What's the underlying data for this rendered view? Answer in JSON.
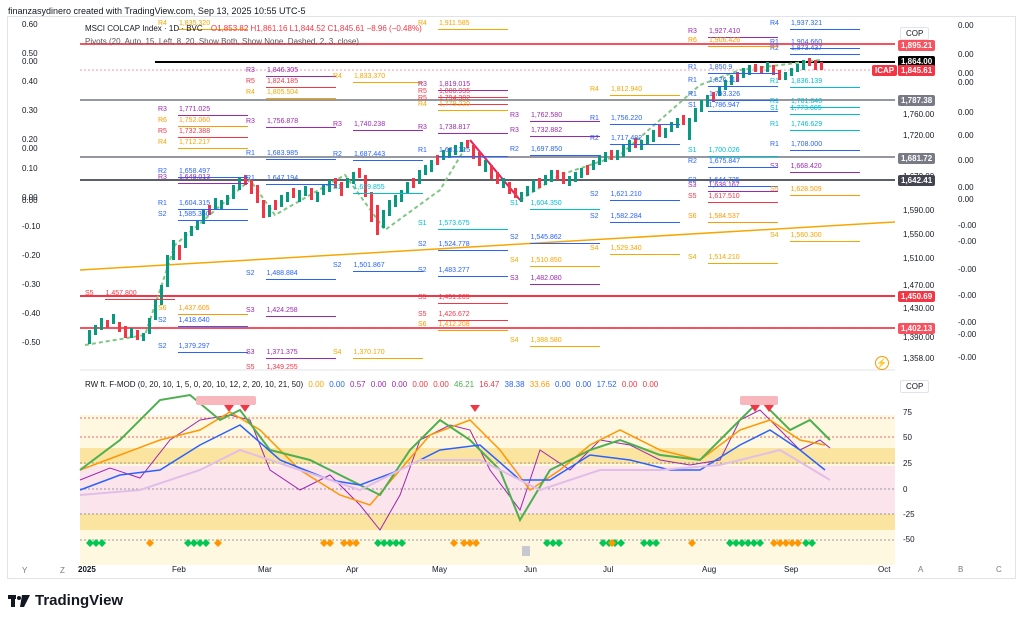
{
  "credit": "finanzasydinero created with TradingView.com, Sep 13, 2025 10:55 UTC-5",
  "legend": {
    "symbol": "MSCI COLCAP Index · 1D · BVC",
    "ohlc": "O1,853.82  H1,861.16  L1,844.52  C1,845.61  −8.96 (−0.48%)",
    "pivots": "Pivots (20, Auto, 15, Left, 8, 20, Show Both, Show None, Dashed, 2, 3, close)",
    "oscillator": "RW ft. F-MOD (0, 20, 10, 1, 5, 0, 20, 10, 12, 2, 20, 10, 21, 50)",
    "osc_values": [
      "0.00",
      "0.00",
      "0.57",
      "0.00",
      "0.00",
      "0.00",
      "0.00",
      "46.21",
      "16.47",
      "38.38",
      "33.66",
      "0.00",
      "0.00",
      "17.52",
      "0.00",
      "0.00"
    ],
    "osc_colors": [
      "#f7a600",
      "#2962ff",
      "#9c27b0",
      "#9c27b0",
      "#9c27b0",
      "#f23645",
      "#f23645",
      "#4caf50",
      "#f23645",
      "#2962ff",
      "#ff9800",
      "#2962ff",
      "#2962ff",
      "#2962ff",
      "#f23645",
      "#f23645"
    ]
  },
  "left_axis": [
    "0.60",
    "0.50",
    "0.40",
    "0.30",
    "0.20",
    "0.10",
    "0.00",
    "-0.10",
    "-0.20",
    "-0.30",
    "-0.40",
    "-0.50"
  ],
  "mid_zeros": [
    "0.00",
    "0.00",
    "0.00",
    "0.00"
  ],
  "right_price_axis": [
    "1,760.00",
    "1,720.00",
    "1,670.00",
    "1,590.00",
    "1,550.00",
    "1,510.00",
    "1,470.00",
    "1,430.00",
    "1,390.00",
    "1,358.00"
  ],
  "right_pct_axis": [
    "0.00",
    "0.00",
    "0.00",
    "0.00",
    "0.00",
    "0.00",
    "0.00",
    "0.00",
    "0.00",
    "-0.00",
    "-0.00",
    "-0.00",
    "-0.00",
    "-0.00",
    "-0.00",
    "-0.00"
  ],
  "price_tags": [
    {
      "label": "1,895.21",
      "color": "#f7525f"
    },
    {
      "label": "1,864.00",
      "color": "#000000"
    },
    {
      "label": "ICAP",
      "color": "#f23645"
    },
    {
      "label": "1,845.61",
      "color": "#f23645"
    },
    {
      "label": "1,787.38",
      "color": "#787b86"
    },
    {
      "label": "1,681.72",
      "color": "#787b86"
    },
    {
      "label": "1,642.41",
      "color": "#434651"
    },
    {
      "label": "1,450.69",
      "color": "#f23645"
    },
    {
      "label": "1,402.13",
      "color": "#f7525f"
    }
  ],
  "cop_label": "COP",
  "osc_axis": [
    "75",
    "50",
    "25",
    "0",
    "-25",
    "-50"
  ],
  "x_axis": [
    "2025",
    "Feb",
    "Mar",
    "Apr",
    "May",
    "Jun",
    "Jul",
    "Aug",
    "Sep",
    "Oct"
  ],
  "bottom_left": "Y",
  "bottom_z": "Z",
  "bottom_right": [
    "A",
    "B",
    "C"
  ],
  "brand": "TradingView",
  "pivot_labels": [
    [
      "R4",
      "1,835.320",
      "#f7a600",
      158,
      20
    ],
    [
      "R4",
      "1,911.585",
      "#f7a600",
      418,
      20
    ],
    [
      "R3",
      "1,927.410",
      "#9c27b0",
      688,
      28
    ],
    [
      "R4",
      "1,937.321",
      "#2962ff",
      770,
      20
    ],
    [
      "R3",
      "1,846.305",
      "#9c27b0",
      246,
      67
    ],
    [
      "R5",
      "1,824.185",
      "#f23645",
      246,
      78
    ],
    [
      "R4",
      "1,805.504",
      "#f7a600",
      246,
      89
    ],
    [
      "R4",
      "1,833.370",
      "#f7a600",
      333,
      73
    ],
    [
      "R3",
      "1,819.015",
      "#9c27b0",
      418,
      81
    ],
    [
      "R5",
      "1,808.935",
      "#f23645",
      418,
      88
    ],
    [
      "R5",
      "1,794.382",
      "#f23645",
      418,
      95
    ],
    [
      "R4",
      "1,779.220",
      "#f7a600",
      418,
      101
    ],
    [
      "R4",
      "1,812.940",
      "#f7a600",
      590,
      86
    ],
    [
      "R3",
      "1,771.025",
      "#9c27b0",
      158,
      106
    ],
    [
      "R6",
      "1,752.060",
      "#ff9800",
      158,
      117
    ],
    [
      "R5",
      "1,732.388",
      "#f23645",
      158,
      128
    ],
    [
      "R4",
      "1,712.217",
      "#f7a600",
      158,
      139
    ],
    [
      "R3",
      "1,756.878",
      "#9c27b0",
      246,
      118
    ],
    [
      "R3",
      "1,740.238",
      "#9c27b0",
      333,
      121
    ],
    [
      "R3",
      "1,738.817",
      "#9c27b0",
      418,
      124
    ],
    [
      "R3",
      "1,762.580",
      "#9c27b0",
      510,
      112
    ],
    [
      "R3",
      "1,732.882",
      "#9c27b0",
      510,
      127
    ],
    [
      "R1",
      "1,756.220",
      "#2962ff",
      590,
      115
    ],
    [
      "R2",
      "1,717.482",
      "#2962ff",
      590,
      135
    ],
    [
      "R1",
      "1,683.985",
      "#2962ff",
      246,
      150
    ],
    [
      "R2",
      "1,687.443",
      "#2962ff",
      333,
      151
    ],
    [
      "R1",
      "1,681.315",
      "#2962ff",
      418,
      147
    ],
    [
      "R2",
      "1,697.850",
      "#2962ff",
      510,
      146
    ],
    [
      "R2",
      "1,658.497",
      "#2962ff",
      158,
      168
    ],
    [
      "R3",
      "1,649.013",
      "#9c27b0",
      158,
      174
    ],
    [
      "R1",
      "1,647.194",
      "#2962ff",
      246,
      175
    ],
    [
      "S1",
      "1,629.855",
      "#00bcd4",
      333,
      184
    ],
    [
      "R1",
      "1,604.315",
      "#2962ff",
      158,
      200
    ],
    [
      "S2",
      "1,585.350",
      "#2962ff",
      158,
      211
    ],
    [
      "S1",
      "1,604.350",
      "#00bcd4",
      510,
      200
    ],
    [
      "S2",
      "1,582.284",
      "#2962ff",
      590,
      213
    ],
    [
      "S1",
      "1,573.675",
      "#00bcd4",
      418,
      220
    ],
    [
      "S2",
      "1,524.778",
      "#2962ff",
      418,
      241
    ],
    [
      "S2",
      "1,545.862",
      "#2962ff",
      510,
      234
    ],
    [
      "S4",
      "1,529.340",
      "#f7a600",
      590,
      245
    ],
    [
      "S4",
      "1,514.210",
      "#f7a600",
      688,
      254
    ],
    [
      "S4",
      "1,560.300",
      "#f7a600",
      770,
      232
    ],
    [
      "S2",
      "1,488.884",
      "#2962ff",
      246,
      270
    ],
    [
      "S2",
      "1,501.867",
      "#2962ff",
      333,
      262
    ],
    [
      "S4",
      "1,510.850",
      "#f7a600",
      510,
      257
    ],
    [
      "S2",
      "1,483.277",
      "#2962ff",
      418,
      267
    ],
    [
      "S3",
      "1,482.080",
      "#9c27b0",
      510,
      275
    ],
    [
      "S5",
      "1,451.205",
      "#f23645",
      418,
      294
    ],
    [
      "S6",
      "1,437.605",
      "#ff9800",
      158,
      305
    ],
    [
      "S3",
      "1,424.258",
      "#9c27b0",
      246,
      307
    ],
    [
      "S5",
      "1,426.672",
      "#f23645",
      418,
      311
    ],
    [
      "S6",
      "1,412.208",
      "#ff9800",
      418,
      321
    ],
    [
      "S5",
      "1,457.800",
      "#f23645",
      85,
      290
    ],
    [
      "S2",
      "1,418.640",
      "#2962ff",
      158,
      317
    ],
    [
      "S2",
      "1,379.297",
      "#2962ff",
      158,
      343
    ],
    [
      "S4",
      "1,388.580",
      "#f7a600",
      510,
      337
    ],
    [
      "S3",
      "1,371.375",
      "#9c27b0",
      246,
      349
    ],
    [
      "S4",
      "1,370.170",
      "#f7a600",
      333,
      349
    ],
    [
      "S5",
      "1,349.255",
      "#f23645",
      246,
      364
    ],
    [
      "S2",
      "1,621.210",
      "#2962ff",
      590,
      191
    ],
    [
      "S3",
      "1,668.420",
      "#9c27b0",
      770,
      163
    ],
    [
      "S3",
      "1,638.167",
      "#9c27b0",
      688,
      182
    ],
    [
      "S2",
      "1,644.725",
      "#2962ff",
      688,
      177
    ],
    [
      "S5",
      "1,617.510",
      "#f23645",
      688,
      193
    ],
    [
      "S5",
      "1,628.509",
      "#ff9800",
      770,
      186
    ],
    [
      "S6",
      "1,584.537",
      "#ff9800",
      688,
      213
    ],
    [
      "R1",
      "1,746.629",
      "#00bcd4",
      770,
      121
    ],
    [
      "S1",
      "1,700.026",
      "#00bcd4",
      688,
      147
    ],
    [
      "R1",
      "1,850.9",
      "#2962ff",
      688,
      64
    ],
    [
      "R1",
      "1,826.110",
      "#2962ff",
      688,
      77
    ],
    [
      "R1",
      "1,793.326",
      "#2962ff",
      688,
      91
    ],
    [
      "S1",
      "1,786.947",
      "#2962ff",
      688,
      102
    ],
    [
      "R1",
      "1,904.660",
      "#2962ff",
      770,
      39
    ],
    [
      "R2",
      "1,873.437",
      "#2962ff",
      770,
      45
    ],
    [
      "R1",
      "1,836.139",
      "#00bcd4",
      770,
      78
    ],
    [
      "R1",
      "1,781.640",
      "#00bcd4",
      770,
      98
    ],
    [
      "R1",
      "1,708.000",
      "#2962ff",
      770,
      141
    ],
    [
      "R2",
      "1,675.847",
      "#2962ff",
      688,
      158
    ],
    [
      "S1",
      "1,773.605",
      "#00bcd4",
      770,
      105
    ],
    [
      "R6",
      "1,906.426",
      "#ff9800",
      688,
      37
    ]
  ]
}
